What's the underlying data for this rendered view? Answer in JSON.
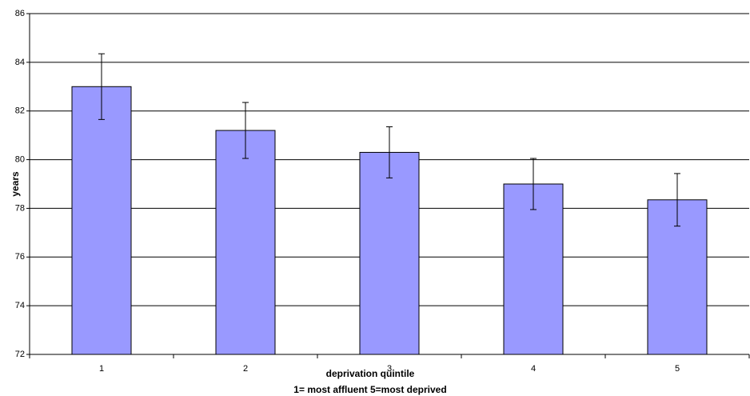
{
  "chart_data": {
    "type": "bar",
    "y_label": "years",
    "x_label": [
      "deprivation quintile",
      "1= most affluent 5=most deprived"
    ],
    "categories": [
      "1",
      "2",
      "3",
      "4",
      "5"
    ],
    "values": [
      83.0,
      81.2,
      80.3,
      79.0,
      78.35
    ],
    "errors": [
      1.35,
      1.15,
      1.05,
      1.05,
      1.08
    ],
    "color": "#9999ff",
    "ylim": [
      72,
      86
    ],
    "yticks": [
      72,
      74,
      76,
      78,
      80,
      82,
      84,
      86
    ],
    "grid": true
  }
}
